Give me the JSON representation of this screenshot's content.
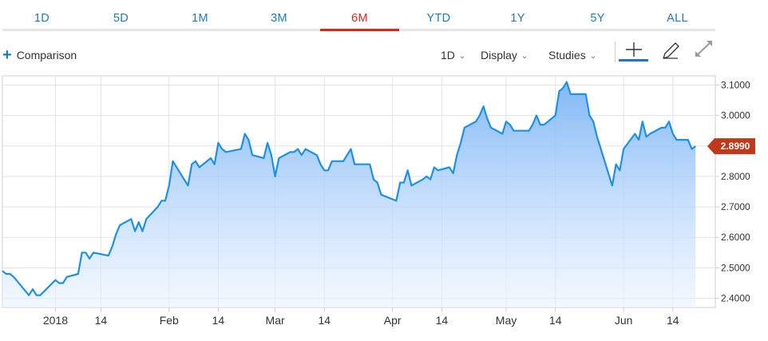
{
  "tabs": [
    {
      "label": "1D",
      "active": false
    },
    {
      "label": "5D",
      "active": false
    },
    {
      "label": "1M",
      "active": false
    },
    {
      "label": "3M",
      "active": false
    },
    {
      "label": "6M",
      "active": true
    },
    {
      "label": "YTD",
      "active": false
    },
    {
      "label": "1Y",
      "active": false
    },
    {
      "label": "5Y",
      "active": false
    },
    {
      "label": "ALL",
      "active": false
    }
  ],
  "toolbar": {
    "comparison_label": "Comparison",
    "interval_label": "1D",
    "display_label": "Display",
    "studies_label": "Studies",
    "caret_glyph": "⌄",
    "plus_glyph": "+"
  },
  "icons": {
    "comparison": "plus-icon",
    "crosshair": "crosshair-icon",
    "draw": "pencil-icon",
    "expand": "expand-icon"
  },
  "colors": {
    "accent": "#1f78c1",
    "active_tab": "#d8281e",
    "line": "#1e90e8",
    "fill_top": "#7ab4f5",
    "fill_bottom": "#eaf3ff",
    "price_badge": "#c0391b"
  },
  "chart_data": {
    "type": "area",
    "title": "",
    "xlabel": "",
    "ylabel": "",
    "ylim": [
      2.37,
      3.13
    ],
    "grid": true,
    "y_ticks": [
      "2.4000",
      "2.5000",
      "2.6000",
      "2.7000",
      "2.8000",
      "2.9000",
      "3.0000",
      "3.1000"
    ],
    "x_ticks": [
      {
        "label": "2018",
        "date": "2018-01-02"
      },
      {
        "label": "14",
        "date": "2018-01-14"
      },
      {
        "label": "Feb",
        "date": "2018-02-01"
      },
      {
        "label": "14",
        "date": "2018-02-14"
      },
      {
        "label": "Mar",
        "date": "2018-03-01"
      },
      {
        "label": "14",
        "date": "2018-03-14"
      },
      {
        "label": "Apr",
        "date": "2018-04-01"
      },
      {
        "label": "14",
        "date": "2018-04-14"
      },
      {
        "label": "May",
        "date": "2018-05-01"
      },
      {
        "label": "14",
        "date": "2018-05-14"
      },
      {
        "label": "Jun",
        "date": "2018-06-01"
      },
      {
        "label": "14",
        "date": "2018-06-14"
      }
    ],
    "last_value_label": "2.8990",
    "last_value": 2.899,
    "series": [
      {
        "points": [
          [
            "2017-12-19",
            2.49
          ],
          [
            "2017-12-20",
            2.48
          ],
          [
            "2017-12-21",
            2.48
          ],
          [
            "2017-12-22",
            2.47
          ],
          [
            "2017-12-26",
            2.41
          ],
          [
            "2017-12-27",
            2.43
          ],
          [
            "2017-12-28",
            2.41
          ],
          [
            "2017-12-29",
            2.41
          ],
          [
            "2018-01-02",
            2.46
          ],
          [
            "2018-01-03",
            2.45
          ],
          [
            "2018-01-04",
            2.45
          ],
          [
            "2018-01-05",
            2.47
          ],
          [
            "2018-01-08",
            2.48
          ],
          [
            "2018-01-09",
            2.55
          ],
          [
            "2018-01-10",
            2.55
          ],
          [
            "2018-01-11",
            2.53
          ],
          [
            "2018-01-12",
            2.55
          ],
          [
            "2018-01-16",
            2.54
          ],
          [
            "2018-01-17",
            2.57
          ],
          [
            "2018-01-18",
            2.61
          ],
          [
            "2018-01-19",
            2.64
          ],
          [
            "2018-01-22",
            2.66
          ],
          [
            "2018-01-23",
            2.62
          ],
          [
            "2018-01-24",
            2.65
          ],
          [
            "2018-01-25",
            2.62
          ],
          [
            "2018-01-26",
            2.66
          ],
          [
            "2018-01-29",
            2.7
          ],
          [
            "2018-01-30",
            2.72
          ],
          [
            "2018-01-31",
            2.72
          ],
          [
            "2018-02-01",
            2.77
          ],
          [
            "2018-02-02",
            2.85
          ],
          [
            "2018-02-05",
            2.79
          ],
          [
            "2018-02-06",
            2.77
          ],
          [
            "2018-02-07",
            2.84
          ],
          [
            "2018-02-08",
            2.85
          ],
          [
            "2018-02-09",
            2.83
          ],
          [
            "2018-02-12",
            2.86
          ],
          [
            "2018-02-13",
            2.84
          ],
          [
            "2018-02-14",
            2.91
          ],
          [
            "2018-02-15",
            2.89
          ],
          [
            "2018-02-16",
            2.88
          ],
          [
            "2018-02-20",
            2.89
          ],
          [
            "2018-02-21",
            2.94
          ],
          [
            "2018-02-22",
            2.92
          ],
          [
            "2018-02-23",
            2.87
          ],
          [
            "2018-02-26",
            2.86
          ],
          [
            "2018-02-27",
            2.91
          ],
          [
            "2018-02-28",
            2.87
          ],
          [
            "2018-03-01",
            2.8
          ],
          [
            "2018-03-02",
            2.86
          ],
          [
            "2018-03-05",
            2.88
          ],
          [
            "2018-03-06",
            2.88
          ],
          [
            "2018-03-07",
            2.89
          ],
          [
            "2018-03-08",
            2.87
          ],
          [
            "2018-03-09",
            2.89
          ],
          [
            "2018-03-12",
            2.87
          ],
          [
            "2018-03-13",
            2.84
          ],
          [
            "2018-03-14",
            2.82
          ],
          [
            "2018-03-15",
            2.82
          ],
          [
            "2018-03-16",
            2.85
          ],
          [
            "2018-03-19",
            2.85
          ],
          [
            "2018-03-20",
            2.87
          ],
          [
            "2018-03-21",
            2.89
          ],
          [
            "2018-03-22",
            2.84
          ],
          [
            "2018-03-23",
            2.84
          ],
          [
            "2018-03-26",
            2.84
          ],
          [
            "2018-03-27",
            2.79
          ],
          [
            "2018-03-28",
            2.78
          ],
          [
            "2018-03-29",
            2.74
          ],
          [
            "2018-04-02",
            2.72
          ],
          [
            "2018-04-03",
            2.78
          ],
          [
            "2018-04-04",
            2.78
          ],
          [
            "2018-04-05",
            2.82
          ],
          [
            "2018-04-06",
            2.77
          ],
          [
            "2018-04-09",
            2.79
          ],
          [
            "2018-04-10",
            2.8
          ],
          [
            "2018-04-11",
            2.79
          ],
          [
            "2018-04-12",
            2.83
          ],
          [
            "2018-04-13",
            2.82
          ],
          [
            "2018-04-16",
            2.83
          ],
          [
            "2018-04-17",
            2.81
          ],
          [
            "2018-04-18",
            2.87
          ],
          [
            "2018-04-19",
            2.91
          ],
          [
            "2018-04-20",
            2.96
          ],
          [
            "2018-04-23",
            2.98
          ],
          [
            "2018-04-24",
            3.0
          ],
          [
            "2018-04-25",
            3.03
          ],
          [
            "2018-04-26",
            2.99
          ],
          [
            "2018-04-27",
            2.96
          ],
          [
            "2018-04-30",
            2.94
          ],
          [
            "2018-05-01",
            2.98
          ],
          [
            "2018-05-02",
            2.97
          ],
          [
            "2018-05-03",
            2.95
          ],
          [
            "2018-05-04",
            2.95
          ],
          [
            "2018-05-07",
            2.95
          ],
          [
            "2018-05-08",
            2.97
          ],
          [
            "2018-05-09",
            3.0
          ],
          [
            "2018-05-10",
            2.97
          ],
          [
            "2018-05-11",
            2.97
          ],
          [
            "2018-05-14",
            3.0
          ],
          [
            "2018-05-15",
            3.08
          ],
          [
            "2018-05-16",
            3.09
          ],
          [
            "2018-05-17",
            3.11
          ],
          [
            "2018-05-18",
            3.07
          ],
          [
            "2018-05-21",
            3.07
          ],
          [
            "2018-05-22",
            3.07
          ],
          [
            "2018-05-23",
            3.0
          ],
          [
            "2018-05-24",
            2.98
          ],
          [
            "2018-05-25",
            2.93
          ],
          [
            "2018-05-29",
            2.77
          ],
          [
            "2018-05-30",
            2.84
          ],
          [
            "2018-05-31",
            2.82
          ],
          [
            "2018-06-01",
            2.89
          ],
          [
            "2018-06-04",
            2.94
          ],
          [
            "2018-06-05",
            2.92
          ],
          [
            "2018-06-06",
            2.98
          ],
          [
            "2018-06-07",
            2.93
          ],
          [
            "2018-06-08",
            2.94
          ],
          [
            "2018-06-11",
            2.96
          ],
          [
            "2018-06-12",
            2.96
          ],
          [
            "2018-06-13",
            2.98
          ],
          [
            "2018-06-14",
            2.94
          ],
          [
            "2018-06-15",
            2.92
          ],
          [
            "2018-06-18",
            2.92
          ],
          [
            "2018-06-19",
            2.89
          ],
          [
            "2018-06-20",
            2.899
          ]
        ]
      }
    ]
  }
}
